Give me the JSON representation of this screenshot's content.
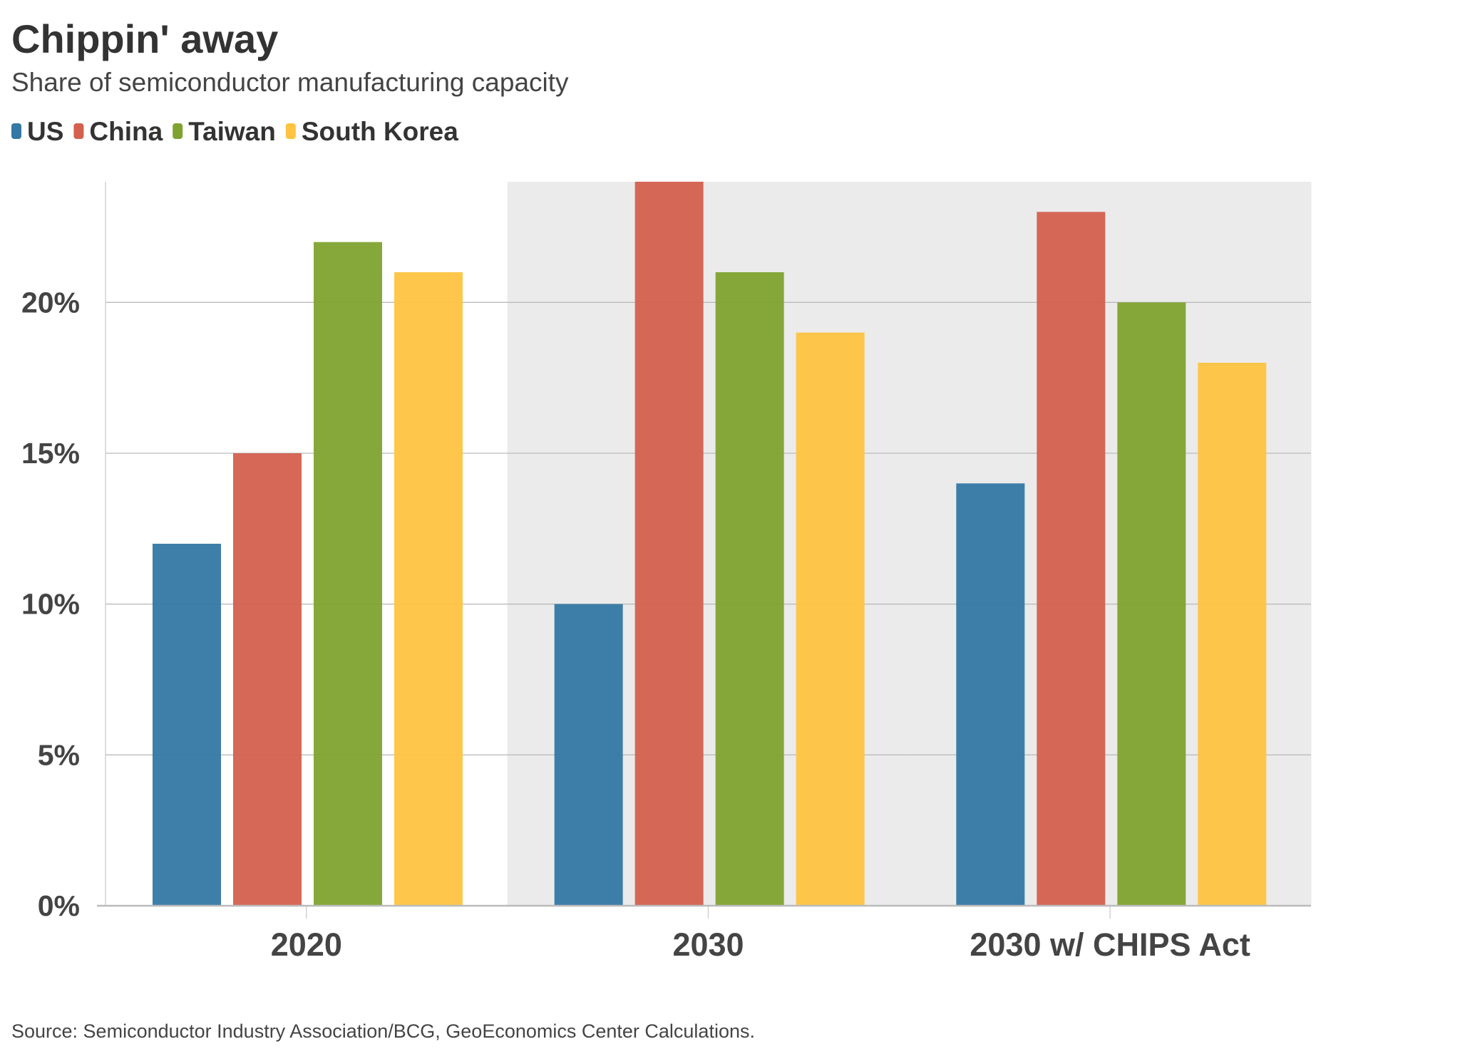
{
  "chart_data": {
    "type": "bar",
    "title": "Chippin' away",
    "subtitle": "Share of semiconductor manufacturing capacity",
    "source": "Source: Semiconductor Industry Association/BCG, GeoEconomics Center Calculations.",
    "categories": [
      "2020",
      "2030",
      "2030 w/ CHIPS Act"
    ],
    "series": [
      {
        "name": "US",
        "color": "#3478a4",
        "values": [
          12,
          10,
          14
        ]
      },
      {
        "name": "China",
        "color": "#d4604f",
        "values": [
          15,
          24,
          23
        ]
      },
      {
        "name": "Taiwan",
        "color": "#80a330",
        "values": [
          22,
          21,
          20
        ]
      },
      {
        "name": "South Korea",
        "color": "#fec441",
        "values": [
          21,
          19,
          18
        ]
      }
    ],
    "ylim": [
      0,
      24
    ],
    "yticks": [
      0,
      5,
      10,
      15,
      20
    ],
    "ytick_labels": [
      "0%",
      "5%",
      "10%",
      "15%",
      "20%"
    ],
    "xlabel": "",
    "ylabel": "",
    "grid": true,
    "legend": "top-left",
    "shaded_categories": [
      "2030",
      "2030 w/ CHIPS Act"
    ],
    "shade_color": "#ebebeb"
  }
}
